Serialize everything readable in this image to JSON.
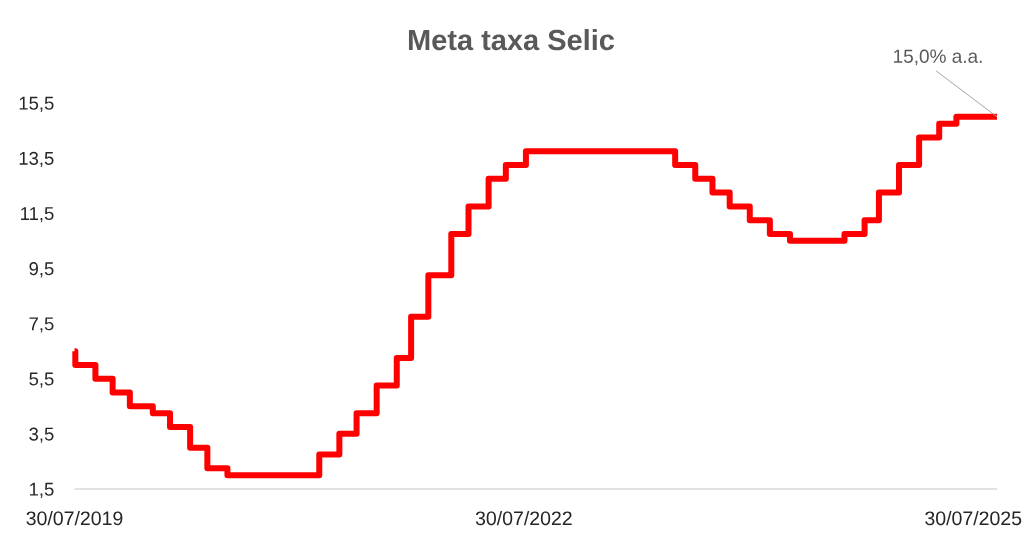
{
  "chart_data": {
    "type": "step",
    "title": "Meta taxa Selic",
    "x": [
      "2019-07-30",
      "2019-08-01",
      "2019-09-19",
      "2019-10-31",
      "2019-12-12",
      "2020-02-06",
      "2020-03-19",
      "2020-05-07",
      "2020-06-18",
      "2020-08-06",
      "2021-03-18",
      "2021-05-06",
      "2021-06-17",
      "2021-08-05",
      "2021-09-23",
      "2021-10-28",
      "2021-12-09",
      "2022-02-03",
      "2022-03-17",
      "2022-05-05",
      "2022-06-16",
      "2022-08-04",
      "2023-08-03",
      "2023-09-21",
      "2023-11-02",
      "2023-12-14",
      "2024-02-01",
      "2024-03-21",
      "2024-05-09",
      "2024-09-19",
      "2024-11-07",
      "2024-12-12",
      "2025-01-30",
      "2025-03-20",
      "2025-05-08",
      "2025-06-19",
      "2025-09-26"
    ],
    "values": [
      6.5,
      6.0,
      5.5,
      5.0,
      4.5,
      4.25,
      3.75,
      3.0,
      2.25,
      2.0,
      2.75,
      3.5,
      4.25,
      5.25,
      6.25,
      7.75,
      9.25,
      10.75,
      11.75,
      12.75,
      13.25,
      13.75,
      13.25,
      12.75,
      12.25,
      11.75,
      11.25,
      10.75,
      10.5,
      10.75,
      11.25,
      12.25,
      13.25,
      14.25,
      14.75,
      15.0,
      15.0
    ],
    "color": "#ff0000",
    "marker": "none",
    "line_style": "solid",
    "xlim": [
      "2019-07-30",
      "2025-09-26"
    ],
    "xticks": [
      {
        "value": "2019-07-30",
        "label": "30/07/2019"
      },
      {
        "value": "2022-07-30",
        "label": "30/07/2022"
      },
      {
        "value": "2025-07-30",
        "label": "30/07/2025"
      }
    ],
    "ylim": [
      1.5,
      15.5
    ],
    "yticks": [
      {
        "value": 1.5,
        "label": "1,5"
      },
      {
        "value": 3.5,
        "label": "3,5"
      },
      {
        "value": 5.5,
        "label": "5,5"
      },
      {
        "value": 7.5,
        "label": "7,5"
      },
      {
        "value": 9.5,
        "label": "9,5"
      },
      {
        "value": 11.5,
        "label": "11,5"
      },
      {
        "value": 13.5,
        "label": "13,5"
      },
      {
        "value": 15.5,
        "label": "15,5"
      }
    ],
    "annotations": [
      {
        "text": "15,0% a.a.",
        "x": "2025-09-26",
        "y": 15.0
      }
    ]
  }
}
